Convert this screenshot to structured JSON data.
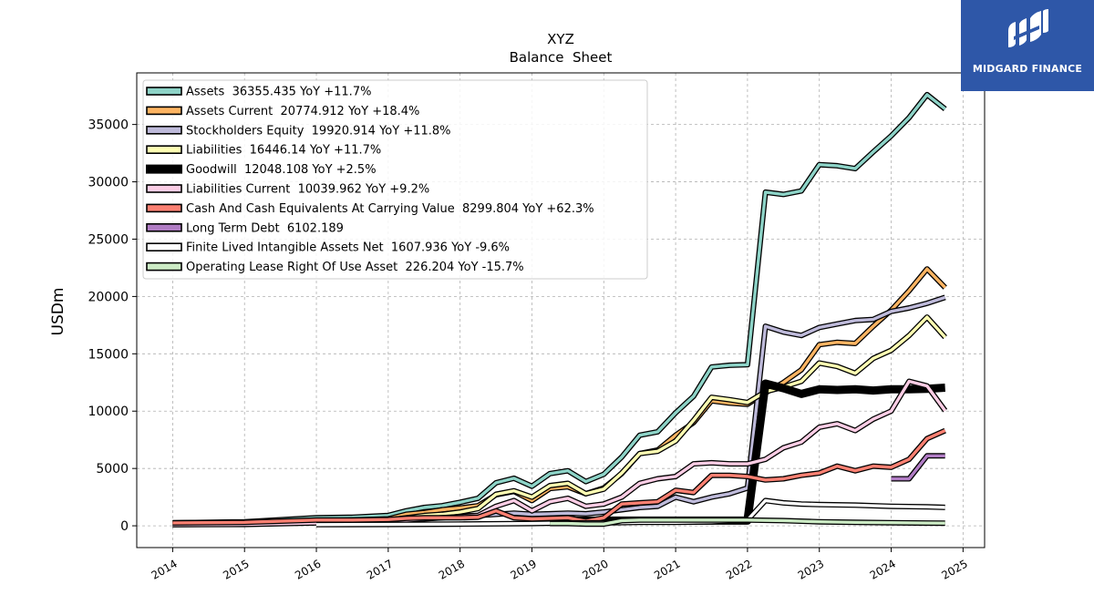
{
  "logo": {
    "text": "MIDGARD FINANCE",
    "background": "#2e57a8"
  },
  "chart_data": {
    "type": "line",
    "title": "XYZ",
    "subtitle": "Balance  Sheet",
    "xlabel": "",
    "ylabel": "USDm",
    "xlim": [
      2013.5,
      2025.3
    ],
    "ylim": [
      -1900,
      39500
    ],
    "xticks": [
      2014,
      2015,
      2016,
      2017,
      2018,
      2019,
      2020,
      2021,
      2022,
      2023,
      2024,
      2025
    ],
    "xtick_labels": [
      "2014",
      "2015",
      "2016",
      "2017",
      "2018",
      "2019",
      "2020",
      "2021",
      "2022",
      "2023",
      "2024",
      "2025"
    ],
    "yticks": [
      0,
      5000,
      10000,
      15000,
      20000,
      25000,
      30000,
      35000
    ],
    "ytick_labels": [
      "0",
      "5000",
      "10000",
      "15000",
      "20000",
      "25000",
      "30000",
      "35000"
    ],
    "grid": true,
    "legend_position": "top-left",
    "series": [
      {
        "name": "Assets  36355.435 YoY +11.7%",
        "color": "#8dd3c7",
        "points": [
          [
            2014.0,
            250
          ],
          [
            2015.0,
            350
          ],
          [
            2016.0,
            700
          ],
          [
            2016.5,
            750
          ],
          [
            2017.0,
            900
          ],
          [
            2017.25,
            1300
          ],
          [
            2017.5,
            1600
          ],
          [
            2017.75,
            1750
          ],
          [
            2018.0,
            2050
          ],
          [
            2018.25,
            2400
          ],
          [
            2018.5,
            3750
          ],
          [
            2018.75,
            4150
          ],
          [
            2019.0,
            3450
          ],
          [
            2019.25,
            4550
          ],
          [
            2019.5,
            4800
          ],
          [
            2019.75,
            3850
          ],
          [
            2020.0,
            4500
          ],
          [
            2020.25,
            6000
          ],
          [
            2020.5,
            7900
          ],
          [
            2020.75,
            8200
          ],
          [
            2021.0,
            9850
          ],
          [
            2021.25,
            11300
          ],
          [
            2021.5,
            13850
          ],
          [
            2021.75,
            14000
          ],
          [
            2022.0,
            14050
          ],
          [
            2022.25,
            29100
          ],
          [
            2022.5,
            28900
          ],
          [
            2022.75,
            29200
          ],
          [
            2023.0,
            31500
          ],
          [
            2023.25,
            31400
          ],
          [
            2023.5,
            31150
          ],
          [
            2023.75,
            32600
          ],
          [
            2024.0,
            34000
          ],
          [
            2024.25,
            35600
          ],
          [
            2024.5,
            37600
          ],
          [
            2024.75,
            36355
          ]
        ]
      },
      {
        "name": "Assets Current  20774.912 YoY +18.4%",
        "color": "#fdb462",
        "points": [
          [
            2014.0,
            250
          ],
          [
            2015.0,
            300
          ],
          [
            2016.0,
            450
          ],
          [
            2016.5,
            500
          ],
          [
            2017.0,
            600
          ],
          [
            2017.25,
            1000
          ],
          [
            2017.5,
            1150
          ],
          [
            2017.75,
            1400
          ],
          [
            2018.0,
            1550
          ],
          [
            2018.25,
            1750
          ],
          [
            2018.5,
            2700
          ],
          [
            2018.75,
            3000
          ],
          [
            2019.0,
            2200
          ],
          [
            2019.25,
            3250
          ],
          [
            2019.5,
            3400
          ],
          [
            2019.75,
            2800
          ],
          [
            2020.0,
            3300
          ],
          [
            2020.25,
            4550
          ],
          [
            2020.5,
            6300
          ],
          [
            2020.75,
            6600
          ],
          [
            2021.0,
            7900
          ],
          [
            2021.25,
            9000
          ],
          [
            2021.5,
            10900
          ],
          [
            2021.75,
            10700
          ],
          [
            2022.0,
            10600
          ],
          [
            2022.25,
            11600
          ],
          [
            2022.5,
            12500
          ],
          [
            2022.75,
            13600
          ],
          [
            2023.0,
            15800
          ],
          [
            2023.25,
            16000
          ],
          [
            2023.5,
            15900
          ],
          [
            2023.75,
            17400
          ],
          [
            2024.0,
            18800
          ],
          [
            2024.25,
            20500
          ],
          [
            2024.5,
            22400
          ],
          [
            2024.75,
            20775
          ]
        ]
      },
      {
        "name": "Stockholders Equity  19920.914 YoY +11.8%",
        "color": "#bebada",
        "points": [
          [
            2014.0,
            200
          ],
          [
            2015.0,
            250
          ],
          [
            2016.0,
            350
          ],
          [
            2016.5,
            400
          ],
          [
            2017.0,
            450
          ],
          [
            2017.25,
            600
          ],
          [
            2017.5,
            700
          ],
          [
            2017.75,
            800
          ],
          [
            2018.0,
            850
          ],
          [
            2018.25,
            900
          ],
          [
            2018.5,
            1000
          ],
          [
            2018.75,
            1100
          ],
          [
            2019.0,
            1000
          ],
          [
            2019.25,
            1050
          ],
          [
            2019.5,
            1100
          ],
          [
            2019.75,
            1050
          ],
          [
            2020.0,
            1200
          ],
          [
            2020.25,
            1400
          ],
          [
            2020.5,
            1600
          ],
          [
            2020.75,
            1700
          ],
          [
            2021.0,
            2500
          ],
          [
            2021.25,
            2100
          ],
          [
            2021.5,
            2500
          ],
          [
            2021.75,
            2800
          ],
          [
            2022.0,
            3300
          ],
          [
            2022.25,
            17400
          ],
          [
            2022.5,
            16900
          ],
          [
            2022.75,
            16600
          ],
          [
            2023.0,
            17300
          ],
          [
            2023.25,
            17600
          ],
          [
            2023.5,
            17900
          ],
          [
            2023.75,
            18000
          ],
          [
            2024.0,
            18700
          ],
          [
            2024.25,
            19000
          ],
          [
            2024.5,
            19400
          ],
          [
            2024.75,
            19921
          ]
        ]
      },
      {
        "name": "Liabilities  16446.14 YoY +11.7%",
        "color": "#ffffb3",
        "points": [
          [
            2014.0,
            100
          ],
          [
            2015.0,
            150
          ],
          [
            2016.0,
            350
          ],
          [
            2016.5,
            400
          ],
          [
            2017.0,
            500
          ],
          [
            2017.25,
            700
          ],
          [
            2017.5,
            900
          ],
          [
            2017.75,
            1000
          ],
          [
            2018.0,
            1200
          ],
          [
            2018.25,
            1500
          ],
          [
            2018.5,
            2750
          ],
          [
            2018.75,
            3050
          ],
          [
            2019.0,
            2500
          ],
          [
            2019.25,
            3500
          ],
          [
            2019.5,
            3700
          ],
          [
            2019.75,
            2800
          ],
          [
            2020.0,
            3200
          ],
          [
            2020.25,
            4600
          ],
          [
            2020.5,
            6300
          ],
          [
            2020.75,
            6500
          ],
          [
            2021.0,
            7400
          ],
          [
            2021.25,
            9200
          ],
          [
            2021.5,
            11200
          ],
          [
            2021.75,
            11000
          ],
          [
            2022.0,
            10750
          ],
          [
            2022.25,
            11700
          ],
          [
            2022.5,
            12100
          ],
          [
            2022.75,
            12600
          ],
          [
            2023.0,
            14200
          ],
          [
            2023.25,
            13900
          ],
          [
            2023.5,
            13300
          ],
          [
            2023.75,
            14600
          ],
          [
            2024.0,
            15300
          ],
          [
            2024.25,
            16600
          ],
          [
            2024.5,
            18200
          ],
          [
            2024.75,
            16446
          ]
        ]
      },
      {
        "name": "Goodwill  12048.108 YoY +2.5%",
        "color": "#000000",
        "points": [
          [
            2019.0,
            400
          ],
          [
            2019.25,
            450
          ],
          [
            2019.5,
            450
          ],
          [
            2019.75,
            450
          ],
          [
            2020.0,
            450
          ],
          [
            2020.25,
            450
          ],
          [
            2020.5,
            450
          ],
          [
            2020.75,
            450
          ],
          [
            2021.0,
            450
          ],
          [
            2021.25,
            450
          ],
          [
            2021.5,
            450
          ],
          [
            2021.75,
            450
          ],
          [
            2022.0,
            450
          ],
          [
            2022.25,
            12400
          ],
          [
            2022.5,
            12000
          ],
          [
            2022.75,
            11500
          ],
          [
            2023.0,
            11900
          ],
          [
            2023.25,
            11850
          ],
          [
            2023.5,
            11900
          ],
          [
            2023.75,
            11800
          ],
          [
            2024.0,
            11900
          ],
          [
            2024.25,
            11900
          ],
          [
            2024.5,
            11950
          ],
          [
            2024.75,
            12048
          ]
        ]
      },
      {
        "name": "Liabilities Current  10039.962 YoY +9.2%",
        "color": "#fccde5",
        "points": [
          [
            2014.0,
            100
          ],
          [
            2015.0,
            120
          ],
          [
            2016.0,
            250
          ],
          [
            2016.5,
            300
          ],
          [
            2017.0,
            400
          ],
          [
            2017.25,
            500
          ],
          [
            2017.5,
            600
          ],
          [
            2017.75,
            700
          ],
          [
            2018.0,
            800
          ],
          [
            2018.25,
            900
          ],
          [
            2018.5,
            1700
          ],
          [
            2018.75,
            2200
          ],
          [
            2019.0,
            1300
          ],
          [
            2019.25,
            2100
          ],
          [
            2019.5,
            2400
          ],
          [
            2019.75,
            1700
          ],
          [
            2020.0,
            1900
          ],
          [
            2020.25,
            2500
          ],
          [
            2020.5,
            3700
          ],
          [
            2020.75,
            4100
          ],
          [
            2021.0,
            4300
          ],
          [
            2021.25,
            5400
          ],
          [
            2021.5,
            5500
          ],
          [
            2021.75,
            5400
          ],
          [
            2022.0,
            5400
          ],
          [
            2022.25,
            5800
          ],
          [
            2022.5,
            6800
          ],
          [
            2022.75,
            7300
          ],
          [
            2023.0,
            8600
          ],
          [
            2023.25,
            8900
          ],
          [
            2023.5,
            8300
          ],
          [
            2023.75,
            9300
          ],
          [
            2024.0,
            10000
          ],
          [
            2024.25,
            12600
          ],
          [
            2024.5,
            12200
          ],
          [
            2024.75,
            10040
          ]
        ]
      },
      {
        "name": "Cash And Cash Equivalents At Carrying Value  8299.804 YoY +62.3%",
        "color": "#fb8072",
        "points": [
          [
            2014.0,
            250
          ],
          [
            2015.0,
            300
          ],
          [
            2016.0,
            500
          ],
          [
            2016.5,
            500
          ],
          [
            2017.0,
            550
          ],
          [
            2017.25,
            650
          ],
          [
            2017.5,
            700
          ],
          [
            2017.75,
            700
          ],
          [
            2018.0,
            700
          ],
          [
            2018.25,
            750
          ],
          [
            2018.5,
            1300
          ],
          [
            2018.75,
            700
          ],
          [
            2019.0,
            600
          ],
          [
            2019.25,
            650
          ],
          [
            2019.5,
            700
          ],
          [
            2019.75,
            400
          ],
          [
            2020.0,
            700
          ],
          [
            2020.25,
            1900
          ],
          [
            2020.5,
            2000
          ],
          [
            2020.75,
            2100
          ],
          [
            2021.0,
            3100
          ],
          [
            2021.25,
            2900
          ],
          [
            2021.5,
            4400
          ],
          [
            2021.75,
            4400
          ],
          [
            2022.0,
            4300
          ],
          [
            2022.25,
            4000
          ],
          [
            2022.5,
            4100
          ],
          [
            2022.75,
            4400
          ],
          [
            2023.0,
            4600
          ],
          [
            2023.25,
            5200
          ],
          [
            2023.5,
            4800
          ],
          [
            2023.75,
            5200
          ],
          [
            2024.0,
            5100
          ],
          [
            2024.25,
            5800
          ],
          [
            2024.5,
            7600
          ],
          [
            2024.75,
            8300
          ]
        ]
      },
      {
        "name": "Long Term Debt  6102.189",
        "color": "#b07cc4",
        "points": [
          [
            2024.0,
            4100
          ],
          [
            2024.25,
            4100
          ],
          [
            2024.5,
            6100
          ],
          [
            2024.75,
            6102
          ]
        ]
      },
      {
        "name": "Finite Lived Intangible Assets Net  1607.936 YoY -9.6%",
        "color": "#ffffff",
        "points": [
          [
            2016.0,
            100
          ],
          [
            2017.0,
            120
          ],
          [
            2018.0,
            150
          ],
          [
            2019.0,
            200
          ],
          [
            2019.5,
            250
          ],
          [
            2020.0,
            250
          ],
          [
            2020.5,
            300
          ],
          [
            2021.0,
            300
          ],
          [
            2021.5,
            350
          ],
          [
            2022.0,
            500
          ],
          [
            2022.25,
            2200
          ],
          [
            2022.5,
            2000
          ],
          [
            2022.75,
            1900
          ],
          [
            2023.0,
            1850
          ],
          [
            2023.5,
            1800
          ],
          [
            2024.0,
            1700
          ],
          [
            2024.5,
            1650
          ],
          [
            2024.75,
            1608
          ]
        ]
      },
      {
        "name": "Operating Lease Right Of Use Asset  226.204 YoY -15.7%",
        "color": "#ccebc5",
        "points": [
          [
            2019.25,
            200
          ],
          [
            2019.5,
            200
          ],
          [
            2019.75,
            150
          ],
          [
            2020.0,
            150
          ],
          [
            2020.25,
            450
          ],
          [
            2020.5,
            500
          ],
          [
            2021.0,
            500
          ],
          [
            2021.5,
            500
          ],
          [
            2022.0,
            500
          ],
          [
            2022.5,
            450
          ],
          [
            2023.0,
            350
          ],
          [
            2023.5,
            300
          ],
          [
            2024.0,
            270
          ],
          [
            2024.5,
            240
          ],
          [
            2024.75,
            226
          ]
        ]
      }
    ]
  }
}
